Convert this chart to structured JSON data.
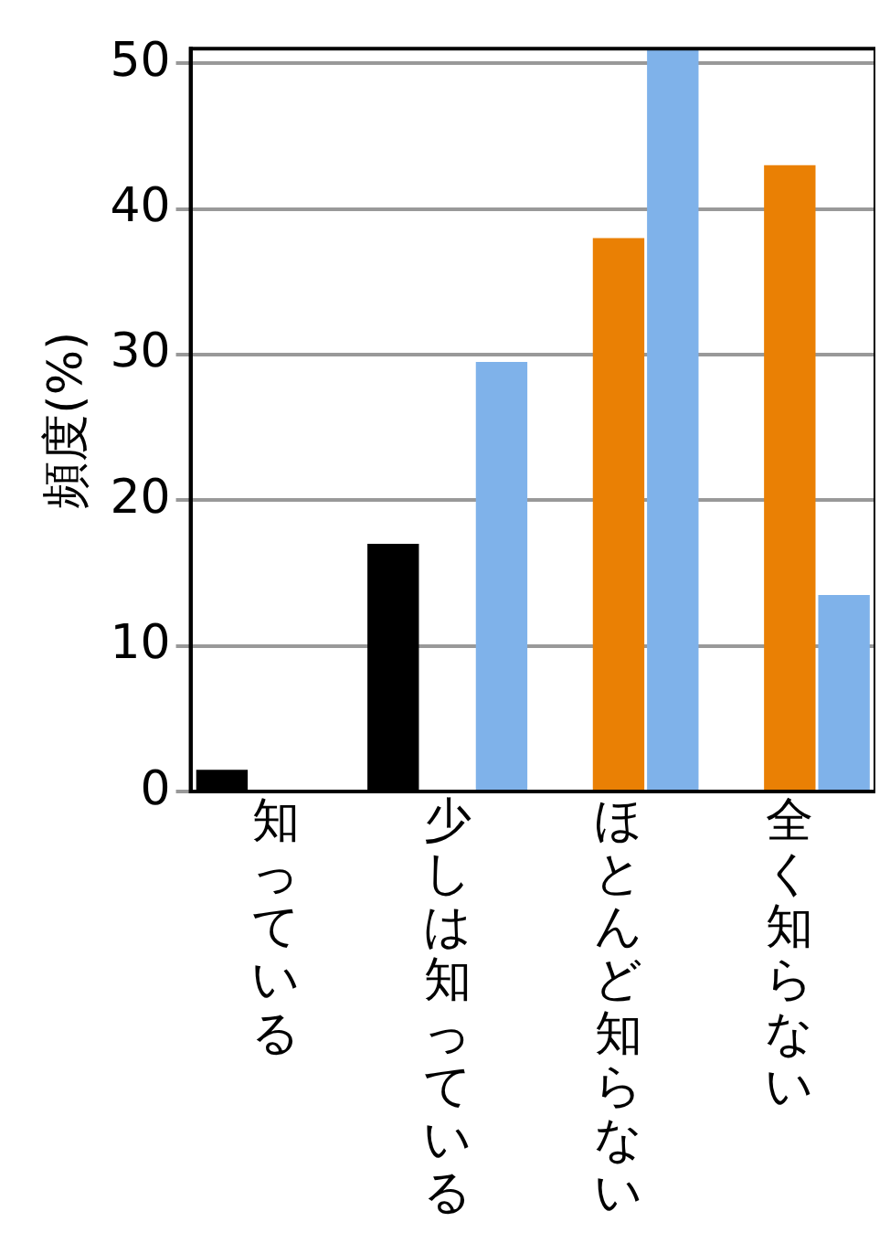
{
  "chart_data": {
    "type": "bar",
    "ylabel": "頻度(%)",
    "categories": [
      "知っている",
      "少しは知っている",
      "ほとんど知らない",
      "全く知らない"
    ],
    "series": [
      {
        "color": "#000000",
        "values": [
          1.5,
          17,
          null,
          null
        ]
      },
      {
        "color": "#ea8004",
        "values": [
          null,
          null,
          38,
          43
        ]
      },
      {
        "color": "#7fb2ea",
        "values": [
          null,
          29.5,
          51,
          13.5
        ]
      }
    ],
    "ylim": [
      0,
      51
    ],
    "yticks": [
      0,
      10,
      20,
      30,
      40,
      50
    ],
    "grid": "y",
    "legend": false
  }
}
